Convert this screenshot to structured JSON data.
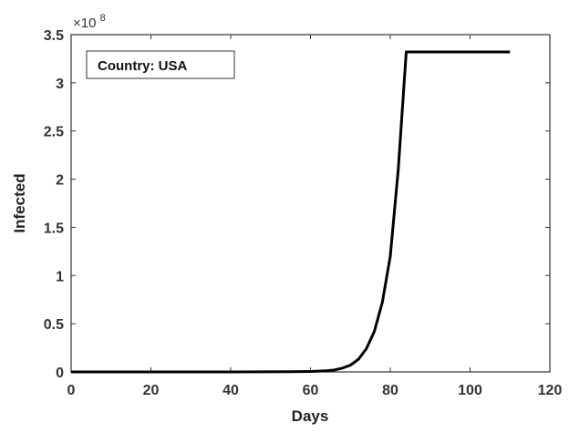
{
  "chart_data": {
    "type": "line",
    "title": "",
    "xlabel": "Days",
    "ylabel": "Infected",
    "y_multiplier_label": "×10",
    "y_multiplier_exponent": "8",
    "xlim": [
      0,
      120
    ],
    "ylim": [
      0,
      3.5
    ],
    "x_ticks": [
      "0",
      "20",
      "40",
      "60",
      "80",
      "100",
      "120"
    ],
    "y_ticks": [
      "0",
      "0.5",
      "1",
      "1.5",
      "2",
      "2.5",
      "3",
      "3.5"
    ],
    "legend_box_label": "Country: USA",
    "legend_box_position": "top-left",
    "grid": false,
    "series": [
      {
        "color": "#000000",
        "x": [
          0,
          20,
          40,
          55,
          60,
          62,
          64,
          66,
          68,
          70,
          72,
          74,
          76,
          78,
          80,
          82,
          84,
          86,
          90,
          100,
          110
        ],
        "y": [
          0,
          0,
          0,
          0.002,
          0.005,
          0.008,
          0.012,
          0.02,
          0.04,
          0.07,
          0.13,
          0.24,
          0.42,
          0.72,
          1.2,
          2.1,
          3.32,
          3.32,
          3.32,
          3.32,
          3.32
        ]
      }
    ]
  }
}
